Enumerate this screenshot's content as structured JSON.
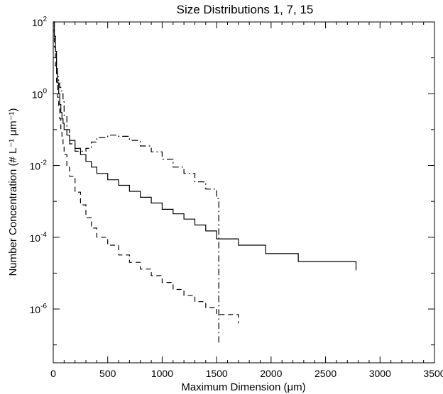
{
  "chart_data": {
    "type": "line",
    "title": "Size Distributions 1, 7, 15",
    "xlabel": "Maximum Dimension (μm)",
    "ylabel": "Number Concentration (# L⁻¹ μm⁻¹)",
    "xlim": [
      0,
      3500
    ],
    "ylim_log10": [
      -7.5,
      2
    ],
    "y_scale": "log",
    "grid": false,
    "x_ticks": [
      0,
      500,
      1000,
      1500,
      2000,
      2500,
      3000,
      3500
    ],
    "x_tick_labels": [
      "0",
      "500",
      "1000",
      "1500",
      "2000",
      "2500",
      "3000",
      "3500"
    ],
    "y_ticks": [
      {
        "base": "10",
        "exp": "2",
        "value": 100
      },
      {
        "base": "10",
        "exp": "0",
        "value": 1
      },
      {
        "base": "10",
        "exp": "-2",
        "value": 0.01
      },
      {
        "base": "10",
        "exp": "-4",
        "value": 0.0001
      },
      {
        "base": "10",
        "exp": "-6",
        "value": 1e-06
      }
    ],
    "series": [
      {
        "style": "solid",
        "edges": [
          0,
          10,
          20,
          30,
          40,
          50,
          60,
          70,
          80,
          90,
          100,
          125,
          150,
          200,
          250,
          300,
          350,
          400,
          500,
          600,
          700,
          800,
          900,
          1000,
          1100,
          1200,
          1300,
          1400,
          1500,
          1700,
          1950,
          2250,
          2780
        ],
        "values": [
          100,
          40,
          15,
          5,
          2,
          1,
          0.5,
          0.3,
          0.2,
          0.15,
          0.1,
          0.07,
          0.05,
          0.03,
          0.02,
          0.013,
          0.009,
          0.006,
          0.004,
          0.0028,
          0.0019,
          0.0013,
          0.0009,
          0.0006,
          0.00045,
          0.00032,
          0.00022,
          0.00015,
          9e-05,
          6e-05,
          3.5e-05,
          2.1e-05,
          1.2e-05
        ]
      },
      {
        "style": "dash-dot",
        "edges": [
          0,
          10,
          20,
          30,
          40,
          50,
          60,
          70,
          80,
          90,
          100,
          125,
          150,
          200,
          250,
          300,
          350,
          400,
          500,
          600,
          700,
          800,
          900,
          1000,
          1100,
          1200,
          1300,
          1400,
          1500,
          1520
        ],
        "values": [
          100,
          40,
          15,
          5,
          3,
          2,
          1.5,
          1.2,
          1.0,
          0.6,
          0.25,
          0.1,
          0.04,
          0.025,
          0.025,
          0.03,
          0.045,
          0.06,
          0.07,
          0.065,
          0.05,
          0.035,
          0.024,
          0.015,
          0.009,
          0.006,
          0.0035,
          0.0022,
          0.0012,
          1e-07
        ]
      },
      {
        "style": "dashed",
        "edges": [
          0,
          10,
          20,
          30,
          40,
          50,
          60,
          70,
          80,
          90,
          100,
          125,
          150,
          200,
          250,
          300,
          350,
          400,
          500,
          600,
          700,
          800,
          900,
          1000,
          1100,
          1200,
          1300,
          1400,
          1500,
          1700
        ],
        "values": [
          60,
          20,
          6,
          2,
          0.8,
          0.4,
          0.2,
          0.1,
          0.06,
          0.035,
          0.02,
          0.01,
          0.005,
          0.0018,
          0.0008,
          0.00035,
          0.00018,
          0.0001,
          6e-05,
          3.2e-05,
          2e-05,
          1.3e-05,
          8.5e-06,
          5.5e-06,
          3.5e-06,
          2.4e-06,
          1.6e-06,
          1.1e-06,
          7e-07,
          4e-07
        ]
      }
    ]
  }
}
